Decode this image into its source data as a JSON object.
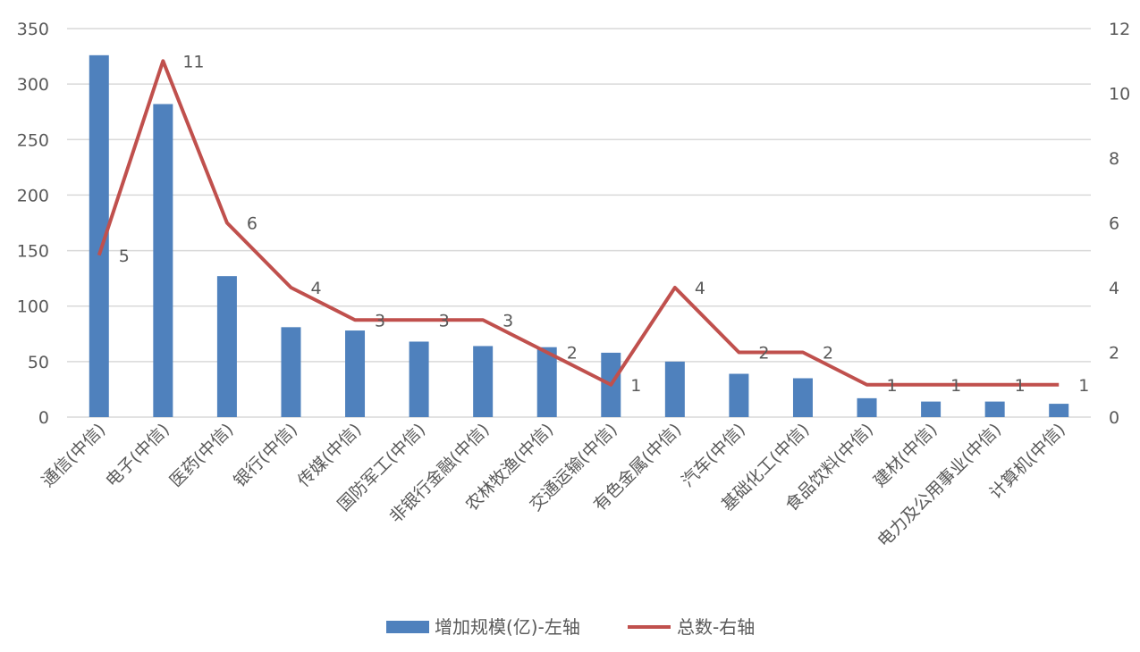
{
  "chart_data": {
    "type": "bar+line",
    "categories": [
      "通信(中信)",
      "电子(中信)",
      "医药(中信)",
      "银行(中信)",
      "传媒(中信)",
      "国防军工(中信)",
      "非银行金融(中信)",
      "农林牧渔(中信)",
      "交通运输(中信)",
      "有色金属(中信)",
      "汽车(中信)",
      "基础化工(中信)",
      "食品饮料(中信)",
      "建材(中信)",
      "电力及公用事业(中信)",
      "计算机(中信)"
    ],
    "series": [
      {
        "name": "增加规模(亿)-左轴",
        "type": "bar",
        "axis": "left",
        "color": "#4f81bd",
        "values": [
          326,
          282,
          127,
          81,
          78,
          68,
          64,
          63,
          58,
          50,
          39,
          35,
          17,
          14,
          14,
          12
        ]
      },
      {
        "name": "总数-右轴",
        "type": "line",
        "axis": "right",
        "color": "#c0504d",
        "values": [
          5,
          11,
          6,
          4,
          3,
          3,
          3,
          2,
          1,
          4,
          2,
          2,
          1,
          1,
          1,
          1
        ]
      }
    ],
    "left_axis": {
      "ylim": [
        0,
        350
      ],
      "ticks": [
        "0",
        "50",
        "100",
        "150",
        "200",
        "250",
        "300",
        "350"
      ]
    },
    "right_axis": {
      "ylim": [
        0,
        12
      ],
      "ticks": [
        "0",
        "2",
        "4",
        "6",
        "8",
        "10",
        "12"
      ]
    },
    "grid": true,
    "legend_position": "bottom"
  }
}
